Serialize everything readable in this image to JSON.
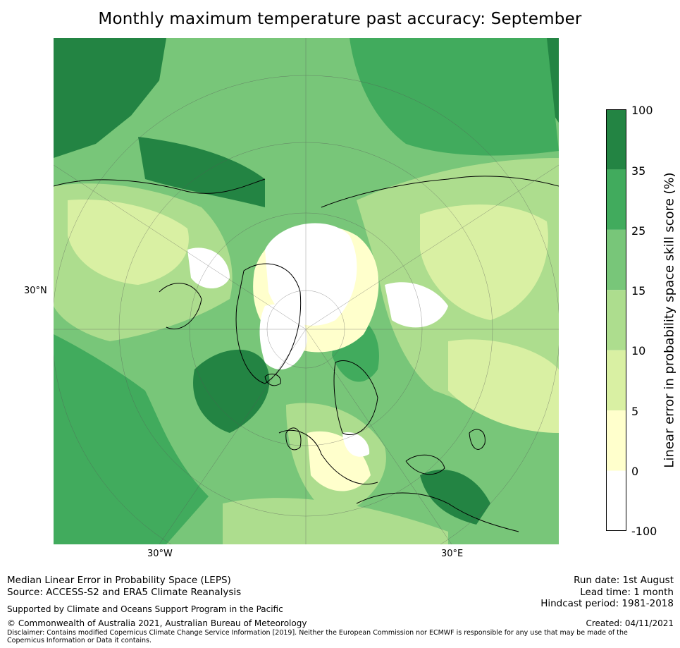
{
  "title": "Monthly maximum temperature past accuracy: September",
  "map": {
    "projection": "north-polar-stereographic",
    "axis_labels": {
      "left": "30°N",
      "bottom_left": "30°W",
      "bottom_right": "30°E"
    },
    "coastline_color": "#000000",
    "graticule_color": "#555555"
  },
  "colorbar": {
    "label": "Linear error in probability space skill score (%)",
    "ticks": [
      "100",
      "35",
      "25",
      "15",
      "10",
      "5",
      "0",
      "-100"
    ],
    "bins": [
      {
        "from": "35",
        "to": "100",
        "color": "#238443"
      },
      {
        "from": "25",
        "to": "35",
        "color": "#41ab5d"
      },
      {
        "from": "15",
        "to": "25",
        "color": "#78c679"
      },
      {
        "from": "10",
        "to": "15",
        "color": "#addd8e"
      },
      {
        "from": "5",
        "to": "10",
        "color": "#d9f0a3"
      },
      {
        "from": "0",
        "to": "5",
        "color": "#ffffcc"
      },
      {
        "from": "-100",
        "to": "0",
        "color": "#ffffff"
      }
    ]
  },
  "footer": {
    "line1": "Median Linear Error in Probability Space (LEPS)",
    "line2": "Source: ACCESS-S2 and ERA5 Climate Reanalysis",
    "support": "Supported by Climate and Oceans Support Program in the Pacific",
    "copyright": "© Commonwealth of Australia 2021, Australian Bureau of Meteorology",
    "disclaimer": "Disclaimer: Contains modified Copernicus Climate Change Service Information [2019]. Neither the European Commission nor ECMWF is responsible for any use that may be made of the Copernicus Information or Data it contains.",
    "run_date": "Run date: 1st August",
    "lead_time": "Lead time: 1 month",
    "hindcast": "Hindcast period: 1981-2018",
    "created": "Created: 04/11/2021"
  }
}
